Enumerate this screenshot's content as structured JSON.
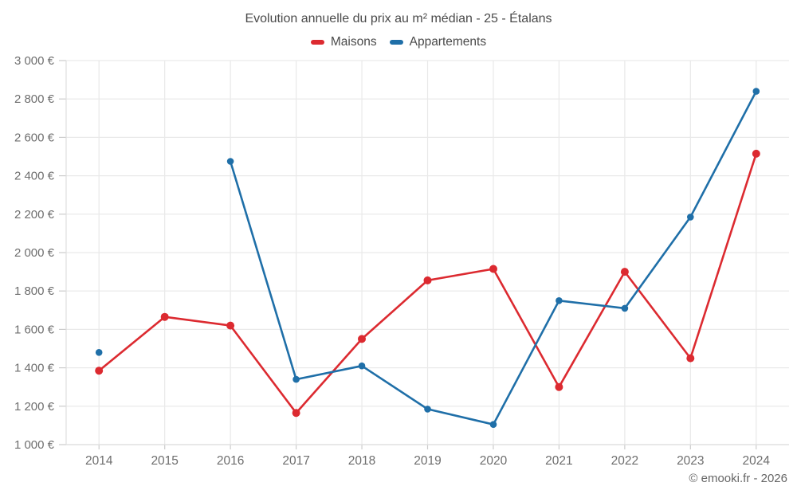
{
  "chart": {
    "title": "Evolution annuelle du prix au m² médian - 25 - Étalans"
  },
  "footer": {
    "copyright": "© emooki.fr - 2026"
  },
  "colors": {
    "grid": "#e9e9e9",
    "axis_border": "#dedede",
    "tick": "#cccccc",
    "tick_label": "#6e6e6e",
    "maisons": "#dc2a30",
    "appartements": "#1f6fa8"
  },
  "chart_data": {
    "type": "line",
    "title": "Evolution annuelle du prix au m² médian - 25 - Étalans",
    "categories": [
      "2014",
      "2015",
      "2016",
      "2017",
      "2018",
      "2019",
      "2020",
      "2021",
      "2022",
      "2023",
      "2024"
    ],
    "series": [
      {
        "name": "Maisons",
        "color": "#dc2a30",
        "values": [
          1385,
          1665,
          1620,
          1165,
          1550,
          1855,
          1915,
          1300,
          1900,
          1450,
          2515
        ]
      },
      {
        "name": "Appartements",
        "color": "#1f6fa8",
        "values": [
          1480,
          null,
          2475,
          1340,
          1410,
          1185,
          1105,
          1750,
          1710,
          2185,
          2840
        ]
      }
    ],
    "xlabel": "",
    "ylabel": "",
    "ylim": [
      1000,
      3000
    ],
    "ytick_step": 200,
    "yticks": [
      1000,
      1200,
      1400,
      1600,
      1800,
      2000,
      2200,
      2400,
      2600,
      2800,
      3000
    ],
    "ytick_labels": [
      "1 000 €",
      "1 200 €",
      "1 400 €",
      "1 600 €",
      "1 800 €",
      "2 000 €",
      "2 200 €",
      "2 400 €",
      "2 600 €",
      "2 800 €",
      "3 000 €"
    ],
    "grid": true,
    "legend_position": "top"
  }
}
